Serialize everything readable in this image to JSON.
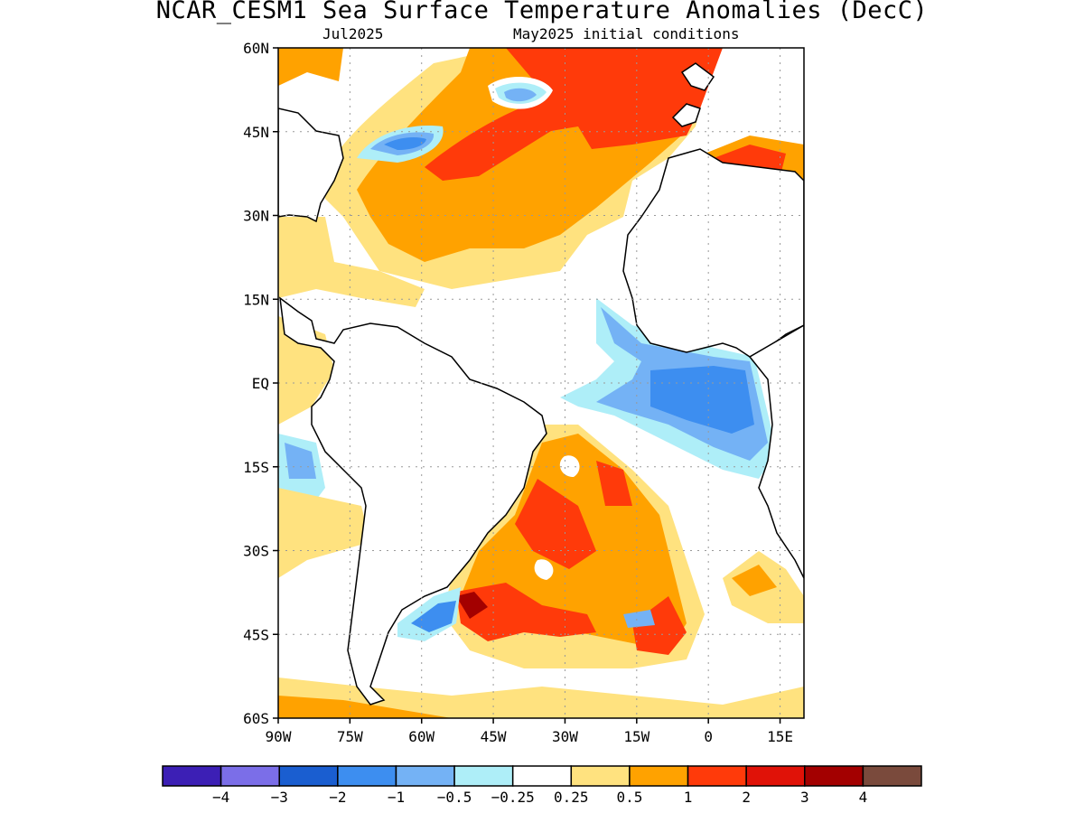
{
  "title": "NCAR_CESM1 Sea Surface Temperature Anomalies (DecC)",
  "subtitle_left": "Jul2025",
  "subtitle_right": "May2025 initial conditions",
  "y_ticks": [
    {
      "label": "60N",
      "value": 60
    },
    {
      "label": "45N",
      "value": 45
    },
    {
      "label": "30N",
      "value": 30
    },
    {
      "label": "15N",
      "value": 15
    },
    {
      "label": "EQ",
      "value": 0
    },
    {
      "label": "15S",
      "value": -15
    },
    {
      "label": "30S",
      "value": -30
    },
    {
      "label": "45S",
      "value": -45
    },
    {
      "label": "60S",
      "value": -60
    }
  ],
  "x_ticks": [
    {
      "label": "90W",
      "value": -90
    },
    {
      "label": "75W",
      "value": -75
    },
    {
      "label": "60W",
      "value": -60
    },
    {
      "label": "45W",
      "value": -45
    },
    {
      "label": "30W",
      "value": -30
    },
    {
      "label": "15W",
      "value": -15
    },
    {
      "label": "0",
      "value": 0
    },
    {
      "label": "15E",
      "value": 15
    }
  ],
  "colorbar": {
    "colors": [
      "#3c1fb5",
      "#7b6ee8",
      "#1a5ed0",
      "#3d8ef0",
      "#74b2f5",
      "#aeeef8",
      "#ffffff",
      "#ffe27f",
      "#ffa200",
      "#ff3a0a",
      "#e01208",
      "#a30000",
      "#7a4a3c"
    ],
    "labels": [
      "−4",
      "−3",
      "−2",
      "−1",
      "−0.5",
      "−0.25",
      "0.25",
      "0.5",
      "1",
      "2",
      "3",
      "4"
    ]
  }
}
